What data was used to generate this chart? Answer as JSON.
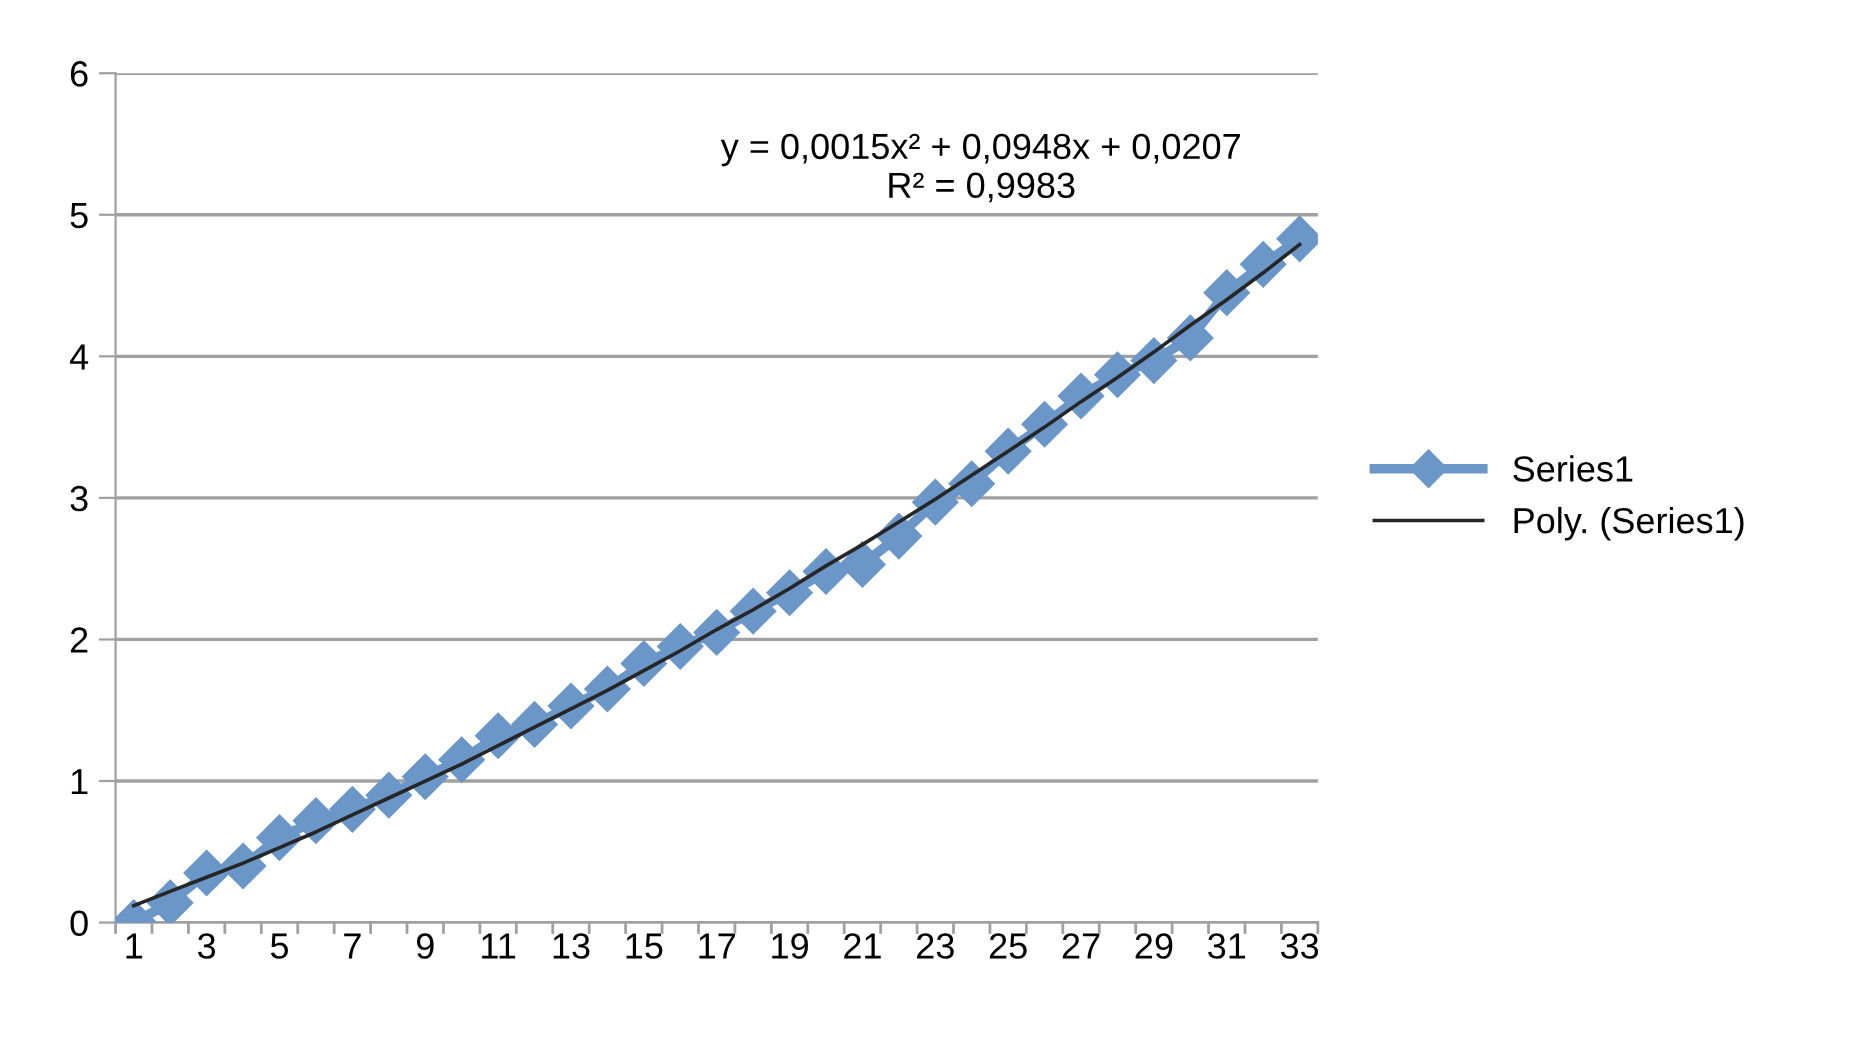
{
  "chart_data": {
    "type": "line",
    "categories": [
      "1",
      null,
      "3",
      null,
      "5",
      null,
      "7",
      null,
      "9",
      null,
      "11",
      null,
      "13",
      null,
      "15",
      null,
      "17",
      null,
      "19",
      null,
      "21",
      null,
      "23",
      null,
      "25",
      null,
      "27",
      null,
      "29",
      null,
      "31",
      null,
      "33"
    ],
    "series": [
      {
        "name": "Series1",
        "color": "#6a96c8",
        "marker": "diamond",
        "values": [
          0.0,
          0.14,
          0.35,
          0.4,
          0.6,
          0.72,
          0.8,
          0.9,
          1.03,
          1.15,
          1.32,
          1.4,
          1.53,
          1.65,
          1.83,
          1.95,
          2.05,
          2.2,
          2.33,
          2.48,
          2.53,
          2.73,
          2.97,
          3.1,
          3.33,
          3.52,
          3.72,
          3.87,
          3.97,
          4.13,
          4.45,
          4.65,
          4.83
        ]
      },
      {
        "name": "Poly. (Series1)",
        "color": "#262626",
        "marker": "none",
        "values": [
          0.12,
          0.22,
          0.32,
          0.42,
          0.53,
          0.64,
          0.76,
          0.88,
          1.0,
          1.12,
          1.25,
          1.38,
          1.51,
          1.64,
          1.78,
          1.92,
          2.07,
          2.21,
          2.36,
          2.52,
          2.67,
          2.83,
          2.99,
          3.16,
          3.33,
          3.5,
          3.68,
          3.85,
          4.03,
          4.22,
          4.4,
          4.59,
          4.79
        ]
      }
    ],
    "ylim": [
      0,
      6
    ],
    "yticks": [
      0,
      1,
      2,
      3,
      4,
      5,
      6
    ],
    "grid": "y",
    "legend": "right",
    "line_style": "solid",
    "annotations": [
      "y = 0,0015x² + 0,0948x + 0,0207\nR² = 0,9983"
    ]
  }
}
